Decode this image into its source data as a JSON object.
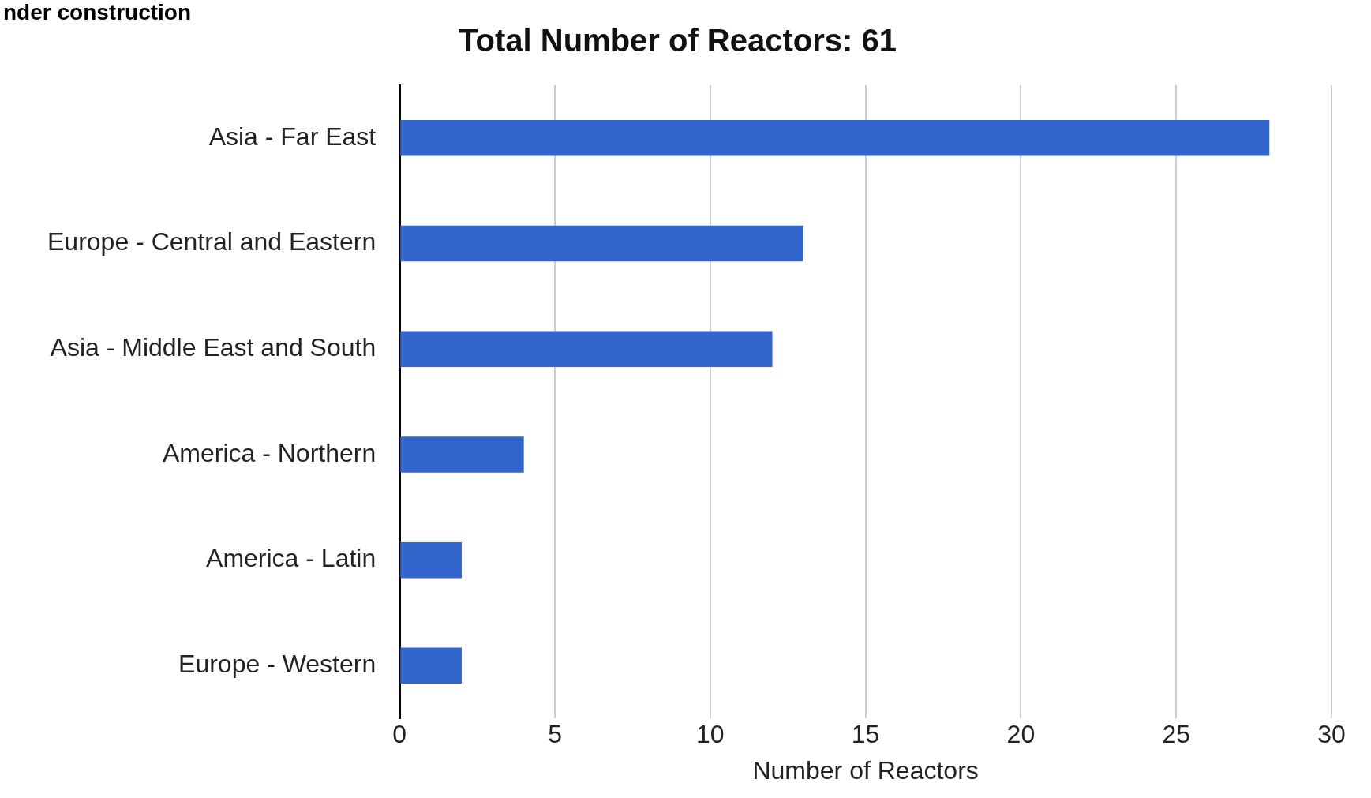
{
  "chart_data": {
    "type": "bar",
    "orientation": "horizontal",
    "title": "Total Number of Reactors: 61",
    "xlabel": "Number of Reactors",
    "categories": [
      "Asia - Far East",
      "Europe - Central and Eastern",
      "Asia - Middle East and South",
      "America - Northern",
      "America - Latin",
      "Europe - Western"
    ],
    "values": [
      28,
      13,
      12,
      4,
      2,
      2
    ],
    "color": "#3366cc",
    "xlim": [
      0,
      30
    ],
    "xticks": [
      0,
      5,
      10,
      15,
      20,
      25,
      30
    ],
    "grid": "x",
    "legend": false,
    "annotations": [
      "nder construction"
    ]
  }
}
